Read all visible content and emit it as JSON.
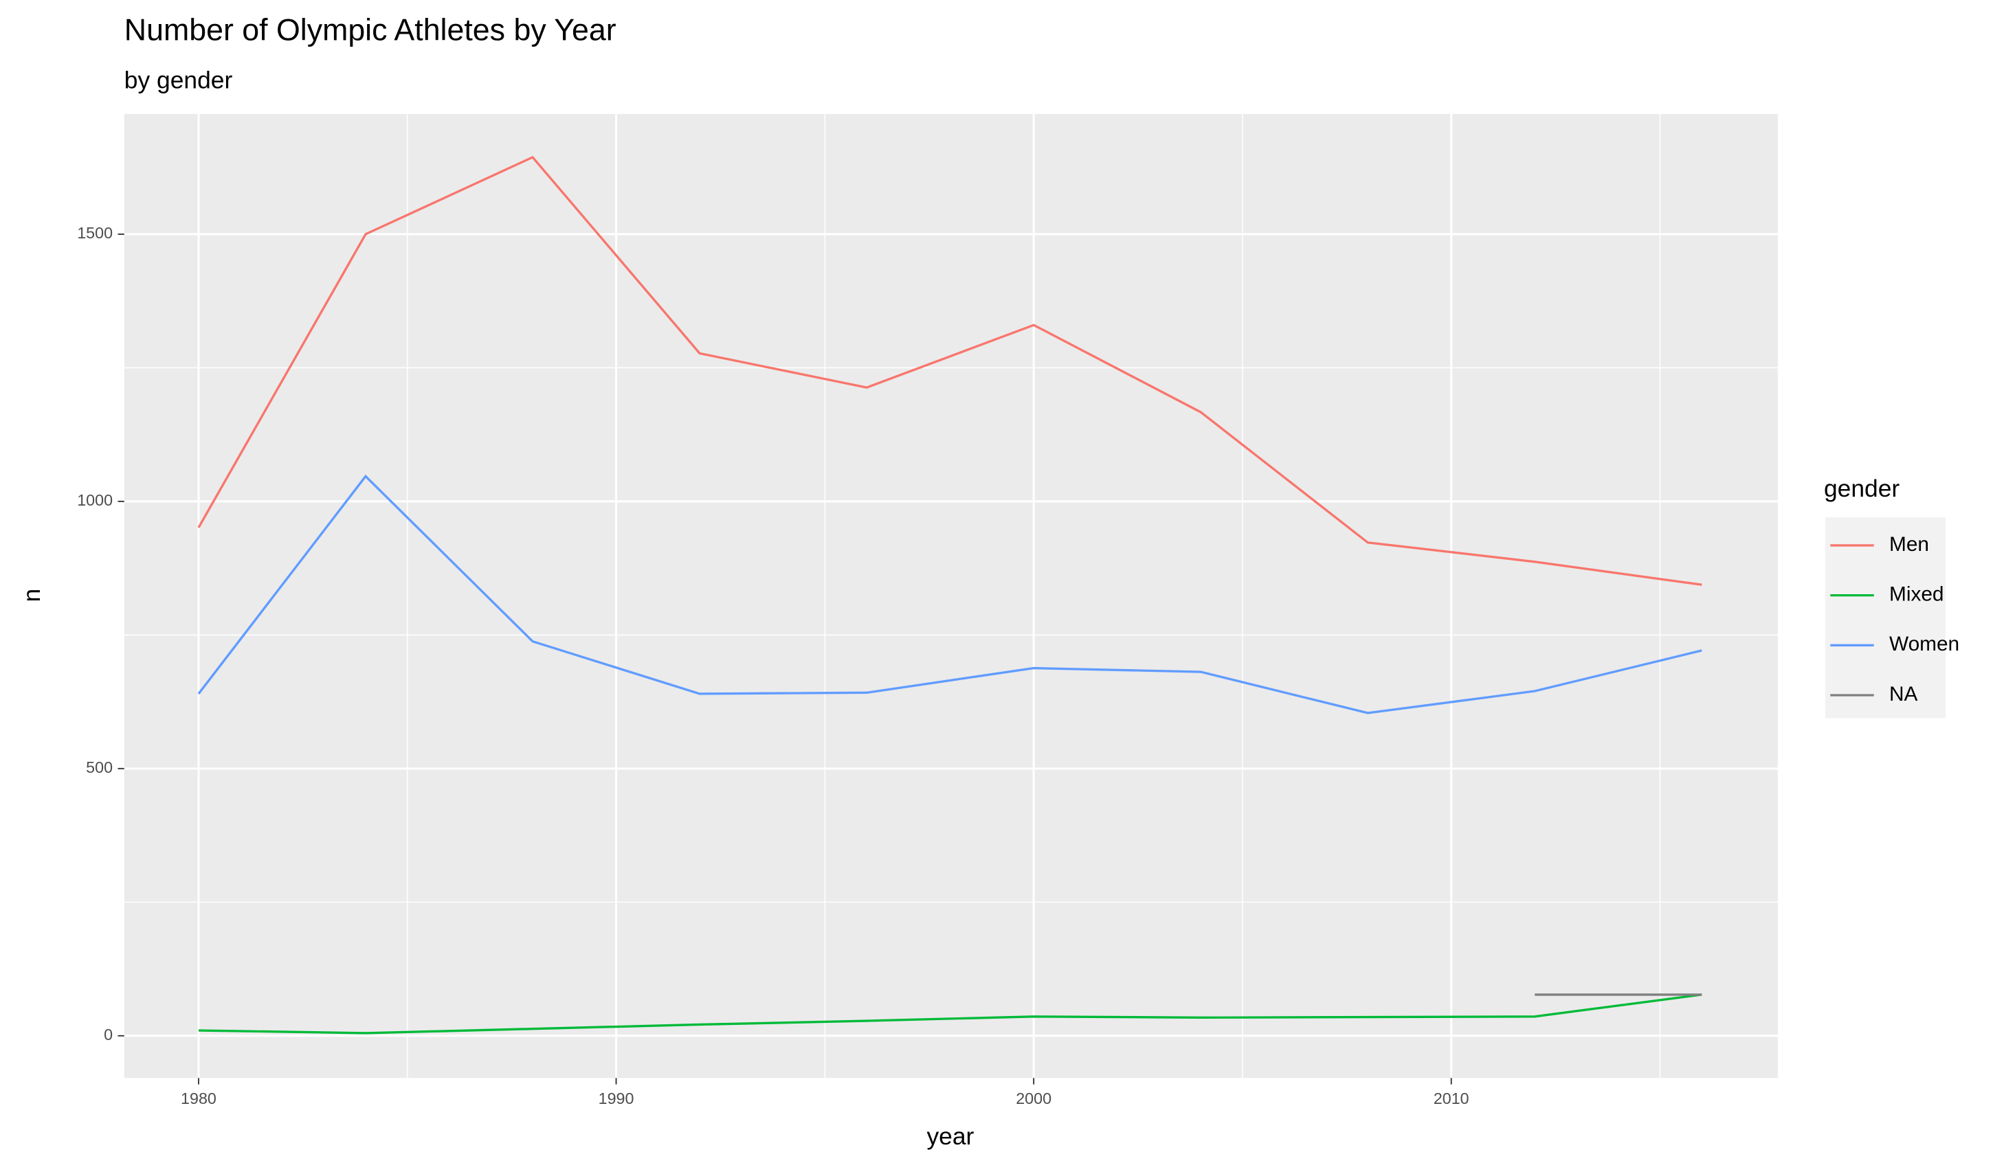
{
  "chart_data": {
    "type": "line",
    "title": "Number of Olympic Athletes by Year",
    "subtitle": "by gender",
    "x_label": "year",
    "y_label": "n",
    "legend_title": "gender",
    "legend_position": "right",
    "grid": true,
    "x": [
      1980,
      1984,
      1988,
      1992,
      1996,
      2000,
      2004,
      2008,
      2012,
      2016
    ],
    "series": [
      {
        "name": "Men",
        "color": "#f8766d",
        "values": [
          951,
          1500,
          1644,
          1277,
          1213,
          1330,
          1167,
          923,
          887,
          844
        ]
      },
      {
        "name": "Mixed",
        "color": "#00ba38",
        "values": [
          10,
          5,
          13,
          21,
          28,
          36,
          34,
          35,
          36,
          77
        ]
      },
      {
        "name": "Women",
        "color": "#619cff",
        "values": [
          640,
          1047,
          738,
          640,
          642,
          688,
          681,
          604,
          645,
          721
        ]
      },
      {
        "name": "NA",
        "color": "#7f7f7f",
        "values": [
          null,
          null,
          null,
          null,
          null,
          null,
          null,
          null,
          77,
          77
        ]
      }
    ],
    "xlim": [
      1978.22,
      2017.82
    ],
    "ylim": [
      -79,
      1725
    ],
    "xticks": [
      1980,
      1990,
      2000,
      2010
    ],
    "yticks": [
      0,
      500,
      1000,
      1500
    ],
    "x_minor_grid": [
      1985,
      1995,
      2005,
      2015
    ],
    "y_minor_grid": [
      250,
      750,
      1250
    ]
  }
}
